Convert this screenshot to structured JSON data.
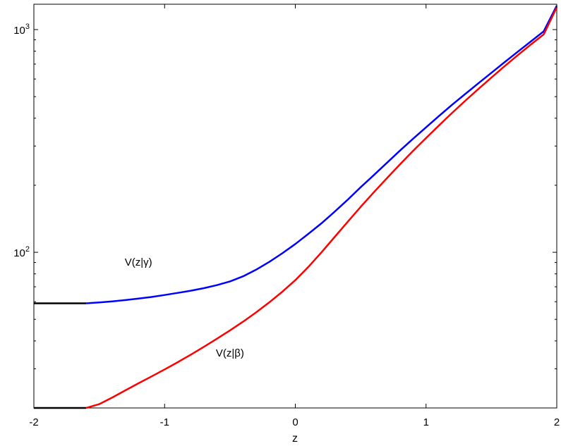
{
  "chart_data": {
    "type": "line",
    "xlabel": "z",
    "ylabel": "",
    "title": "",
    "xlim": [
      -2,
      2
    ],
    "ylim": [
      20,
      1300
    ],
    "yscale": "log",
    "grid": false,
    "x_ticks": [
      {
        "value": -2,
        "label": "-2"
      },
      {
        "value": -1,
        "label": "-1"
      },
      {
        "value": 0,
        "label": "0"
      },
      {
        "value": 1,
        "label": "1"
      },
      {
        "value": 2,
        "label": "2"
      }
    ],
    "y_ticks": [
      {
        "value": 100,
        "base": "10",
        "exp": "2"
      },
      {
        "value": 1000,
        "base": "10",
        "exp": "3"
      }
    ],
    "series": [
      {
        "name": "V(z|γ)",
        "color": "#0000ff",
        "flat_color": "#000000",
        "flat_until": -1.6,
        "x": [
          -2.0,
          -1.6,
          -1.5,
          -1.4,
          -1.3,
          -1.2,
          -1.1,
          -1.0,
          -0.9,
          -0.8,
          -0.7,
          -0.6,
          -0.5,
          -0.4,
          -0.3,
          -0.2,
          -0.1,
          0.0,
          0.1,
          0.2,
          0.3,
          0.4,
          0.5,
          0.6,
          0.7,
          0.8,
          0.9,
          1.0,
          1.1,
          1.2,
          1.3,
          1.4,
          1.5,
          1.6,
          1.7,
          1.8,
          1.9,
          2.0
        ],
        "y": [
          59,
          59,
          59.5,
          60.2,
          61,
          62,
          63,
          64.3,
          65.7,
          67.2,
          69,
          71.2,
          74,
          78,
          83.5,
          90.5,
          99,
          109,
          121,
          135,
          152,
          172,
          196,
          222,
          252,
          286,
          323,
          364,
          410,
          460,
          514,
          574,
          640,
          713,
          794,
          883,
          982,
          1280
        ]
      },
      {
        "name": "V(z|β)",
        "color": "#ff0000",
        "flat_color": "#000000",
        "flat_until": -1.6,
        "x": [
          -2.0,
          -1.6,
          -1.5,
          -1.4,
          -1.3,
          -1.2,
          -1.1,
          -1.0,
          -0.9,
          -0.8,
          -0.7,
          -0.6,
          -0.5,
          -0.4,
          -0.3,
          -0.2,
          -0.1,
          0.0,
          0.1,
          0.2,
          0.3,
          0.4,
          0.5,
          0.6,
          0.7,
          0.8,
          0.9,
          1.0,
          1.1,
          1.2,
          1.3,
          1.4,
          1.5,
          1.6,
          1.7,
          1.8,
          1.9,
          2.0
        ],
        "y": [
          20,
          20,
          20.8,
          22.3,
          24,
          25.8,
          27.7,
          29.8,
          32.1,
          34.7,
          37.6,
          40.9,
          44.6,
          48.8,
          53.7,
          59.5,
          66.5,
          75,
          86,
          100,
          117,
          137,
          160,
          186,
          215,
          248,
          285,
          326,
          372,
          423,
          479,
          541,
          609,
          684,
          766,
          855,
          952,
          1260
        ]
      }
    ],
    "annotations": [
      {
        "text": "V(z|γ)",
        "x": -1.2,
        "y": 87
      },
      {
        "text": "V(z|β)",
        "x": -0.5,
        "y": 34
      }
    ]
  }
}
